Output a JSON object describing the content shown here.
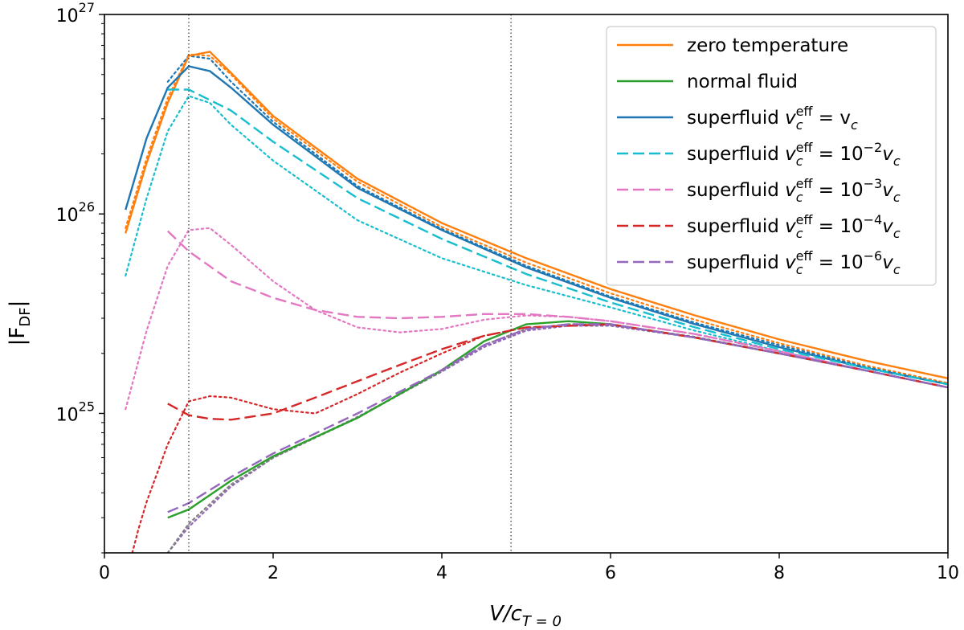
{
  "chart_data": {
    "type": "line",
    "xlabel": "V/c_{T=0}",
    "xlabel_main": "V/c",
    "xlabel_sub": "T = 0",
    "ylabel": "|F_DF|",
    "ylabel_main": "|F",
    "ylabel_sub": "DF",
    "ylabel_end": "|",
    "yscale": "log",
    "xlim": [
      0,
      10
    ],
    "ylim": [
      2e+24,
      1e+27
    ],
    "x_ticks": [
      0,
      2,
      4,
      6,
      8,
      10
    ],
    "x_tick_labels": [
      "0",
      "2",
      "4",
      "6",
      "8",
      "10"
    ],
    "y_ticks": [
      1e+25,
      1e+26,
      1e+27
    ],
    "y_tick_labels": [
      {
        "base": "10",
        "exp": "25"
      },
      {
        "base": "10",
        "exp": "26"
      },
      {
        "base": "10",
        "exp": "27"
      }
    ],
    "vlines": [
      1.0,
      4.82
    ],
    "legend_position": "top-right",
    "series": [
      {
        "name": "zero temperature",
        "color": "#ff7f0e",
        "dash": "solid",
        "x": [
          0.25,
          0.5,
          0.75,
          1.0,
          1.25,
          1.5,
          2,
          3,
          4,
          5,
          6,
          7,
          8,
          9,
          10
        ],
        "y": [
          8e+25,
          1.8e+26,
          3.6e+26,
          6.2e+26,
          6.5e+26,
          5.1e+26,
          3.1e+26,
          1.5e+26,
          9e+25,
          6e+25,
          4.2e+25,
          3.1e+25,
          2.35e+25,
          1.85e+25,
          1.5e+25
        ]
      },
      {
        "name": "normal fluid",
        "color": "#2ca02c",
        "dash": "solid",
        "x": [
          0.75,
          1.0,
          1.5,
          2,
          3,
          4,
          4.5,
          5,
          5.5,
          6,
          7,
          8,
          9,
          10
        ],
        "y": [
          3e+24,
          3.3e+24,
          4.6e+24,
          6.1e+24,
          9.5e+24,
          1.65e+25,
          2.3e+25,
          2.8e+25,
          2.9e+25,
          2.8e+25,
          2.4e+25,
          2e+25,
          1.65e+25,
          1.35e+25
        ]
      },
      {
        "name": "superfluid v_c^eff = v_c",
        "label_main": "superfluid ",
        "label_math": [
          {
            "t": "v"
          },
          {
            "sub": "c"
          },
          {
            "sup": "eff"
          },
          {
            "t": " = v"
          },
          {
            "sub": "c"
          }
        ],
        "color": "#1f77b4",
        "dash": "solid",
        "x": [
          0.25,
          0.5,
          0.75,
          1.0,
          1.25,
          1.5,
          2,
          3,
          4,
          5,
          6,
          7,
          8,
          9,
          10
        ],
        "y": [
          1.05e+26,
          2.4e+26,
          4.3e+26,
          5.5e+26,
          5.2e+26,
          4.3e+26,
          2.8e+26,
          1.35e+26,
          8.3e+25,
          5.4e+25,
          3.8e+25,
          2.8e+25,
          2.15e+25,
          1.7e+25,
          1.4e+25
        ]
      },
      {
        "name": "superfluid v_c^eff = 10^-2 v_c",
        "label_main": "superfluid ",
        "label_math": [
          {
            "t": "v"
          },
          {
            "sub": "c"
          },
          {
            "sup": "eff"
          },
          {
            "t": " = 10"
          },
          {
            "sup": "−2"
          },
          {
            "t": "v"
          },
          {
            "sub": "c"
          }
        ],
        "color": "#17becf",
        "dash": "dashed",
        "x": [
          0.75,
          1.0,
          1.5,
          2,
          3,
          4,
          5,
          6,
          7,
          8,
          9,
          10
        ],
        "y": [
          4.2e+26,
          4.2e+26,
          3.3e+26,
          2.3e+26,
          1.2e+26,
          7.5e+25,
          5e+25,
          3.6e+25,
          2.7e+25,
          2.1e+25,
          1.7e+25,
          1.4e+25
        ]
      },
      {
        "name": "superfluid v_c^eff = 10^-3 v_c",
        "label_main": "superfluid ",
        "label_math": [
          {
            "t": "v"
          },
          {
            "sub": "c"
          },
          {
            "sup": "eff"
          },
          {
            "t": " = 10"
          },
          {
            "sup": "−3"
          },
          {
            "t": "v"
          },
          {
            "sub": "c"
          }
        ],
        "color": "#e377c2",
        "dash": "dashed",
        "x": [
          0.75,
          1.0,
          1.5,
          2,
          2.5,
          3,
          3.5,
          4,
          4.5,
          5,
          5.5,
          6,
          7,
          8,
          9,
          10
        ],
        "y": [
          8.2e+25,
          6.5e+25,
          4.6e+25,
          3.8e+25,
          3.3e+25,
          3.05e+25,
          3e+25,
          3.05e+25,
          3.15e+25,
          3.15e+25,
          3.05e+25,
          2.9e+25,
          2.5e+25,
          2.05e+25,
          1.65e+25,
          1.35e+25
        ]
      },
      {
        "name": "superfluid v_c^eff = 10^-4 v_c",
        "label_main": "superfluid ",
        "label_math": [
          {
            "t": "v"
          },
          {
            "sub": "c"
          },
          {
            "sup": "eff"
          },
          {
            "t": " = 10"
          },
          {
            "sup": "−4"
          },
          {
            "t": "v"
          },
          {
            "sub": "c"
          }
        ],
        "color": "#d62728",
        "dash": "dashed",
        "x": [
          0.75,
          1.0,
          1.25,
          1.5,
          2,
          2.5,
          3,
          3.5,
          4,
          4.5,
          5,
          6,
          7,
          8,
          9,
          10
        ],
        "y": [
          1.12e+25,
          9.8e+24,
          9.4e+24,
          9.3e+24,
          1e+25,
          1.2e+25,
          1.45e+25,
          1.75e+25,
          2.1e+25,
          2.45e+25,
          2.7e+25,
          2.8e+25,
          2.4e+25,
          2e+25,
          1.65e+25,
          1.35e+25
        ]
      },
      {
        "name": "superfluid v_c^eff = 10^-6 v_c",
        "label_main": "superfluid ",
        "label_math": [
          {
            "t": "v"
          },
          {
            "sub": "c"
          },
          {
            "sup": "eff"
          },
          {
            "t": " = 10"
          },
          {
            "sup": "−6"
          },
          {
            "t": "v"
          },
          {
            "sub": "c"
          }
        ],
        "color": "#9467bd",
        "dash": "dashed",
        "x": [
          0.75,
          1.0,
          1.5,
          2,
          3,
          4,
          4.5,
          5,
          5.5,
          6,
          7,
          8,
          9,
          10
        ],
        "y": [
          3.2e+24,
          3.55e+24,
          4.8e+24,
          6.3e+24,
          1e+25,
          1.65e+25,
          2.2e+25,
          2.65e+25,
          2.8e+25,
          2.8e+25,
          2.4e+25,
          2e+25,
          1.65e+25,
          1.35e+25
        ]
      }
    ],
    "extra_lines": [
      {
        "name": "zero temperature (dotted)",
        "color": "#ff7f0e",
        "dash": "dotted",
        "x": [
          0.25,
          0.5,
          0.75,
          1.0,
          1.25,
          1.5,
          2,
          3,
          4,
          5,
          6,
          7,
          8,
          9,
          10
        ],
        "y": [
          8.5e+25,
          1.9e+26,
          3.8e+26,
          6.3e+26,
          6.2e+26,
          5e+26,
          3e+26,
          1.45e+26,
          8.6e+25,
          5.7e+25,
          4e+25,
          2.95e+25,
          2.25e+25,
          1.75e+25,
          1.42e+25
        ]
      },
      {
        "name": "superfluid v_c (dotted)",
        "color": "#1f77b4",
        "dash": "dotted",
        "x": [
          0.75,
          1.0,
          1.25,
          1.5,
          2,
          3,
          4,
          5,
          6,
          7,
          8,
          9,
          10
        ],
        "y": [
          4.6e+26,
          6.2e+26,
          6e+26,
          4.6e+26,
          2.9e+26,
          1.38e+26,
          8.4e+25,
          5.5e+25,
          3.85e+25,
          2.85e+25,
          2.2e+25,
          1.72e+25,
          1.4e+25
        ]
      },
      {
        "name": "superfluid 10^-2 (dotted)",
        "color": "#17becf",
        "dash": "dotted",
        "x": [
          0.25,
          0.5,
          0.75,
          1.0,
          1.25,
          1.5,
          2,
          3,
          4,
          5,
          6,
          7,
          8,
          9,
          10
        ],
        "y": [
          4.9e+25,
          1.2e+26,
          2.6e+26,
          3.9e+26,
          3.6e+26,
          2.8e+26,
          1.85e+26,
          9.3e+25,
          6e+25,
          4.4e+25,
          3.4e+25,
          2.6e+25,
          2.05e+25,
          1.65e+25,
          1.35e+25
        ]
      },
      {
        "name": "superfluid 10^-3 (dotted)",
        "color": "#e377c2",
        "dash": "dotted",
        "x": [
          0.25,
          0.5,
          0.75,
          1.0,
          1.25,
          1.5,
          2,
          2.5,
          3,
          3.5,
          4,
          4.5,
          5,
          5.5,
          6,
          7,
          8,
          9,
          10
        ],
        "y": [
          1.05e+25,
          2.6e+25,
          5.5e+25,
          8.3e+25,
          8.5e+25,
          7e+25,
          4.6e+25,
          3.3e+25,
          2.7e+25,
          2.55e+25,
          2.65e+25,
          2.95e+25,
          3.1e+25,
          3.05e+25,
          2.9e+25,
          2.5e+25,
          2.05e+25,
          1.65e+25,
          1.35e+25
        ]
      },
      {
        "name": "superfluid 10^-4 (dotted)",
        "color": "#d62728",
        "dash": "dotted",
        "x": [
          0.33,
          0.4,
          0.5,
          0.75,
          1.0,
          1.25,
          1.5,
          2,
          2.5,
          3,
          3.5,
          4,
          4.5,
          5,
          6,
          7,
          8,
          9,
          10
        ],
        "y": [
          2e+24,
          2.6e+24,
          3.6e+24,
          7e+24,
          1.15e+25,
          1.22e+25,
          1.2e+25,
          1.05e+25,
          1e+25,
          1.25e+25,
          1.6e+25,
          2e+25,
          2.45e+25,
          2.7e+25,
          2.8e+25,
          2.4e+25,
          2e+25,
          1.65e+25,
          1.35e+25
        ]
      },
      {
        "name": "superfluid 10^-6 (dotted)",
        "color": "#9467bd",
        "dash": "dotted",
        "x": [
          0.75,
          1.0,
          1.5,
          2,
          3,
          4,
          4.5,
          5,
          5.5,
          6,
          7,
          8,
          9,
          10
        ],
        "y": [
          2e+24,
          2.7e+24,
          4.3e+24,
          6e+24,
          9.6e+24,
          1.62e+25,
          2.15e+25,
          2.6e+25,
          2.75e+25,
          2.75e+25,
          2.4e+25,
          2e+25,
          1.65e+25,
          1.35e+25
        ]
      },
      {
        "name": "normal fluid (dotted)",
        "color": "#7f7f7f",
        "dash": "dotted",
        "x": [
          0.75,
          1.0,
          1.5,
          2,
          3,
          4,
          4.5,
          5,
          5.5,
          6,
          7,
          8,
          9,
          10
        ],
        "y": [
          2e+24,
          2.8e+24,
          4.4e+24,
          6e+24,
          9.5e+24,
          1.63e+25,
          2.2e+25,
          2.65e+25,
          2.8e+25,
          2.78e+25,
          2.42e+25,
          2e+25,
          1.65e+25,
          1.35e+25
        ]
      }
    ]
  }
}
